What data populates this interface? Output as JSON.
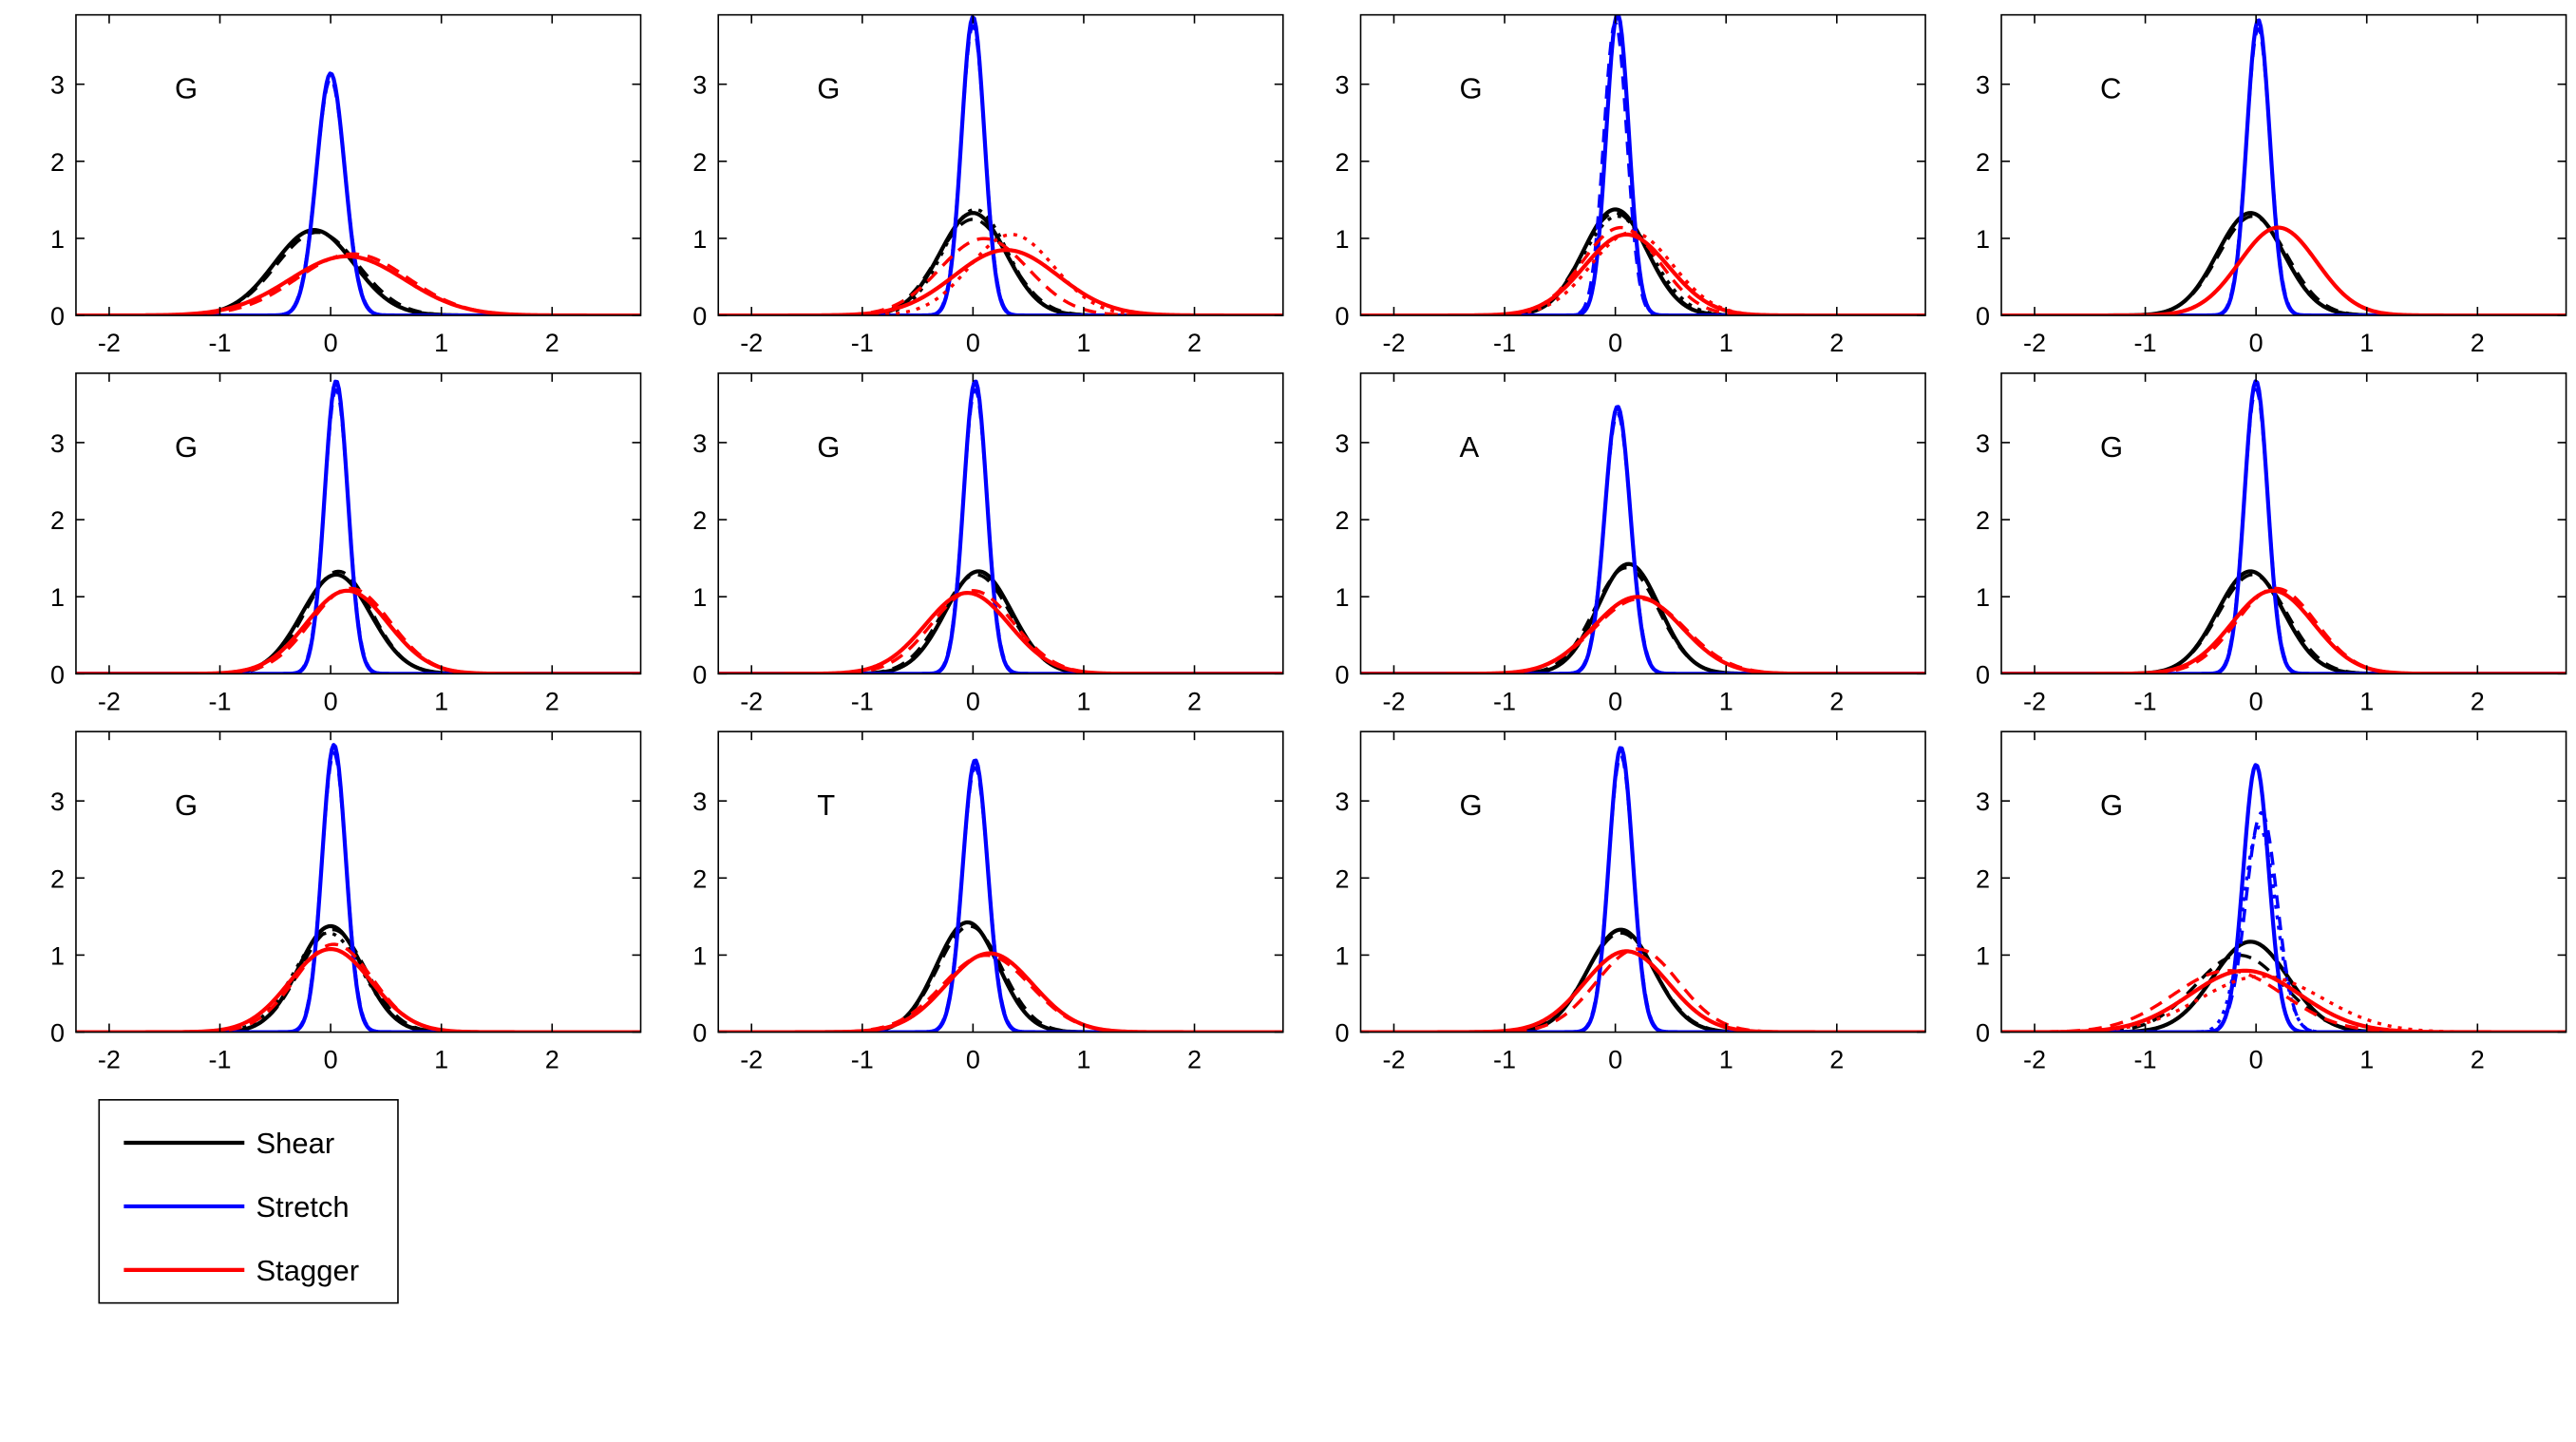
{
  "figure": {
    "legend_entries": [
      {
        "name": "Shear",
        "color": "#000000"
      },
      {
        "name": "Stretch",
        "color": "#0000ff"
      },
      {
        "name": "Stagger",
        "color": "#ff0000"
      }
    ],
    "colors": {
      "shear": "#000000",
      "stretch": "#0000ff",
      "stagger": "#ff0000",
      "axes": "#000000",
      "background": "#ffffff"
    }
  },
  "chart_data": [
    {
      "type": "line",
      "annotation": "G",
      "xlim": [
        -2.3,
        2.8
      ],
      "ylim": [
        0,
        3.9
      ],
      "xticks": [
        -2,
        -1,
        0,
        1,
        2
      ],
      "yticks": [
        0,
        1,
        2,
        3
      ],
      "grid": false,
      "series": [
        {
          "name": "Shear",
          "curves": [
            {
              "mean": -0.15,
              "sd": 0.36
            },
            {
              "mean": -0.12,
              "sd": 0.37
            }
          ]
        },
        {
          "name": "Stretch",
          "curves": [
            {
              "mean": 0.0,
              "sd": 0.127
            },
            {
              "mean": 0.0,
              "sd": 0.13
            }
          ]
        },
        {
          "name": "Stagger",
          "curves": [
            {
              "mean": 0.15,
              "sd": 0.52
            },
            {
              "mean": 0.2,
              "sd": 0.5
            }
          ]
        }
      ]
    },
    {
      "type": "line",
      "annotation": "G",
      "xlim": [
        -2.3,
        2.8
      ],
      "ylim": [
        0,
        3.9
      ],
      "xticks": [
        -2,
        -1,
        0,
        1,
        2
      ],
      "yticks": [
        0,
        1,
        2,
        3
      ],
      "grid": false,
      "series": [
        {
          "name": "Shear",
          "curves": [
            {
              "mean": 0.0,
              "sd": 0.3
            },
            {
              "mean": 0.0,
              "sd": 0.32
            },
            {
              "mean": 0.02,
              "sd": 0.29
            }
          ]
        },
        {
          "name": "Stretch",
          "curves": [
            {
              "mean": 0.0,
              "sd": 0.103
            },
            {
              "mean": 0.0,
              "sd": 0.106
            }
          ]
        },
        {
          "name": "Stagger",
          "curves": [
            {
              "mean": 0.3,
              "sd": 0.47
            },
            {
              "mean": 0.1,
              "sd": 0.4
            },
            {
              "mean": 0.35,
              "sd": 0.38
            }
          ]
        }
      ]
    },
    {
      "type": "line",
      "annotation": "G",
      "xlim": [
        -2.3,
        2.8
      ],
      "ylim": [
        0,
        3.9
      ],
      "xticks": [
        -2,
        -1,
        0,
        1,
        2
      ],
      "yticks": [
        0,
        1,
        2,
        3
      ],
      "grid": false,
      "series": [
        {
          "name": "Shear",
          "curves": [
            {
              "mean": 0.0,
              "sd": 0.29
            },
            {
              "mean": 0.0,
              "sd": 0.3
            },
            {
              "mean": 0.02,
              "sd": 0.31
            }
          ]
        },
        {
          "name": "Stretch",
          "curves": [
            {
              "mean": 0.02,
              "sd": 0.102
            },
            {
              "mean": 0.0,
              "sd": 0.105
            }
          ]
        },
        {
          "name": "Stagger",
          "curves": [
            {
              "mean": 0.1,
              "sd": 0.38
            },
            {
              "mean": 0.05,
              "sd": 0.35
            },
            {
              "mean": 0.15,
              "sd": 0.37
            }
          ]
        }
      ]
    },
    {
      "type": "line",
      "annotation": "C",
      "xlim": [
        -2.3,
        2.8
      ],
      "ylim": [
        0,
        3.9
      ],
      "xticks": [
        -2,
        -1,
        0,
        1,
        2
      ],
      "yticks": [
        0,
        1,
        2,
        3
      ],
      "grid": false,
      "series": [
        {
          "name": "Shear",
          "curves": [
            {
              "mean": -0.05,
              "sd": 0.3
            },
            {
              "mean": -0.03,
              "sd": 0.31
            }
          ]
        },
        {
          "name": "Stretch",
          "curves": [
            {
              "mean": 0.02,
              "sd": 0.104
            },
            {
              "mean": 0.02,
              "sd": 0.107
            }
          ]
        },
        {
          "name": "Stagger",
          "curves": [
            {
              "mean": 0.2,
              "sd": 0.35
            }
          ]
        }
      ]
    },
    {
      "type": "line",
      "annotation": "G",
      "xlim": [
        -2.3,
        2.8
      ],
      "ylim": [
        0,
        3.9
      ],
      "xticks": [
        -2,
        -1,
        0,
        1,
        2
      ],
      "yticks": [
        0,
        1,
        2,
        3
      ],
      "grid": false,
      "series": [
        {
          "name": "Shear",
          "curves": [
            {
              "mean": 0.05,
              "sd": 0.31
            },
            {
              "mean": 0.07,
              "sd": 0.3
            }
          ]
        },
        {
          "name": "Stretch",
          "curves": [
            {
              "mean": 0.05,
              "sd": 0.105
            },
            {
              "mean": 0.05,
              "sd": 0.108
            }
          ]
        },
        {
          "name": "Stagger",
          "curves": [
            {
              "mean": 0.15,
              "sd": 0.37
            },
            {
              "mean": 0.18,
              "sd": 0.36
            }
          ]
        }
      ]
    },
    {
      "type": "line",
      "annotation": "G",
      "xlim": [
        -2.3,
        2.8
      ],
      "ylim": [
        0,
        3.9
      ],
      "xticks": [
        -2,
        -1,
        0,
        1,
        2
      ],
      "yticks": [
        0,
        1,
        2,
        3
      ],
      "grid": false,
      "series": [
        {
          "name": "Shear",
          "curves": [
            {
              "mean": 0.05,
              "sd": 0.3
            },
            {
              "mean": 0.03,
              "sd": 0.31
            }
          ]
        },
        {
          "name": "Stretch",
          "curves": [
            {
              "mean": 0.02,
              "sd": 0.105
            },
            {
              "mean": 0.02,
              "sd": 0.108
            }
          ]
        },
        {
          "name": "Stagger",
          "curves": [
            {
              "mean": -0.05,
              "sd": 0.38
            },
            {
              "mean": 0.0,
              "sd": 0.37
            }
          ]
        }
      ]
    },
    {
      "type": "line",
      "annotation": "A",
      "xlim": [
        -2.3,
        2.8
      ],
      "ylim": [
        0,
        3.9
      ],
      "xticks": [
        -2,
        -1,
        0,
        1,
        2
      ],
      "yticks": [
        0,
        1,
        2,
        3
      ],
      "grid": false,
      "series": [
        {
          "name": "Shear",
          "curves": [
            {
              "mean": 0.12,
              "sd": 0.28
            },
            {
              "mean": 0.1,
              "sd": 0.29
            }
          ]
        },
        {
          "name": "Stretch",
          "curves": [
            {
              "mean": 0.02,
              "sd": 0.115
            },
            {
              "mean": 0.02,
              "sd": 0.118
            }
          ]
        },
        {
          "name": "Stagger",
          "curves": [
            {
              "mean": 0.2,
              "sd": 0.4
            },
            {
              "mean": 0.22,
              "sd": 0.41
            }
          ]
        }
      ]
    },
    {
      "type": "line",
      "annotation": "G",
      "xlim": [
        -2.3,
        2.8
      ],
      "ylim": [
        0,
        3.9
      ],
      "xticks": [
        -2,
        -1,
        0,
        1,
        2
      ],
      "yticks": [
        0,
        1,
        2,
        3
      ],
      "grid": false,
      "series": [
        {
          "name": "Shear",
          "curves": [
            {
              "mean": -0.05,
              "sd": 0.3
            },
            {
              "mean": -0.03,
              "sd": 0.31
            }
          ]
        },
        {
          "name": "Stretch",
          "curves": [
            {
              "mean": 0.0,
              "sd": 0.105
            },
            {
              "mean": 0.0,
              "sd": 0.108
            }
          ]
        },
        {
          "name": "Stagger",
          "curves": [
            {
              "mean": 0.15,
              "sd": 0.37
            },
            {
              "mean": 0.18,
              "sd": 0.36
            }
          ]
        }
      ]
    },
    {
      "type": "line",
      "annotation": "G",
      "xlim": [
        -2.3,
        2.8
      ],
      "ylim": [
        0,
        3.9
      ],
      "xticks": [
        -2,
        -1,
        0,
        1,
        2
      ],
      "yticks": [
        0,
        1,
        2,
        3
      ],
      "grid": false,
      "series": [
        {
          "name": "Shear",
          "curves": [
            {
              "mean": 0.0,
              "sd": 0.29
            },
            {
              "mean": 0.02,
              "sd": 0.3
            },
            {
              "mean": -0.02,
              "sd": 0.31
            }
          ]
        },
        {
          "name": "Stretch",
          "curves": [
            {
              "mean": 0.03,
              "sd": 0.107
            },
            {
              "mean": 0.03,
              "sd": 0.11
            }
          ]
        },
        {
          "name": "Stagger",
          "curves": [
            {
              "mean": 0.0,
              "sd": 0.37
            },
            {
              "mean": 0.03,
              "sd": 0.35
            }
          ]
        }
      ]
    },
    {
      "type": "line",
      "annotation": "T",
      "xlim": [
        -2.3,
        2.8
      ],
      "ylim": [
        0,
        3.9
      ],
      "xticks": [
        -2,
        -1,
        0,
        1,
        2
      ],
      "yticks": [
        0,
        1,
        2,
        3
      ],
      "grid": false,
      "series": [
        {
          "name": "Shear",
          "curves": [
            {
              "mean": -0.05,
              "sd": 0.28
            },
            {
              "mean": -0.03,
              "sd": 0.29
            }
          ]
        },
        {
          "name": "Stretch",
          "curves": [
            {
              "mean": 0.02,
              "sd": 0.113
            },
            {
              "mean": 0.02,
              "sd": 0.116
            }
          ]
        },
        {
          "name": "Stagger",
          "curves": [
            {
              "mean": 0.15,
              "sd": 0.39
            },
            {
              "mean": 0.12,
              "sd": 0.4
            }
          ]
        }
      ]
    },
    {
      "type": "line",
      "annotation": "G",
      "xlim": [
        -2.3,
        2.8
      ],
      "ylim": [
        0,
        3.9
      ],
      "xticks": [
        -2,
        -1,
        0,
        1,
        2
      ],
      "yticks": [
        0,
        1,
        2,
        3
      ],
      "grid": false,
      "series": [
        {
          "name": "Shear",
          "curves": [
            {
              "mean": 0.05,
              "sd": 0.3
            },
            {
              "mean": 0.05,
              "sd": 0.31
            }
          ]
        },
        {
          "name": "Stretch",
          "curves": [
            {
              "mean": 0.05,
              "sd": 0.108
            },
            {
              "mean": 0.05,
              "sd": 0.111
            }
          ]
        },
        {
          "name": "Stagger",
          "curves": [
            {
              "mean": 0.1,
              "sd": 0.38
            },
            {
              "mean": 0.2,
              "sd": 0.37
            }
          ]
        }
      ]
    },
    {
      "type": "line",
      "annotation": "G",
      "xlim": [
        -2.3,
        2.8
      ],
      "ylim": [
        0,
        3.9
      ],
      "xticks": [
        -2,
        -1,
        0,
        1,
        2
      ],
      "yticks": [
        0,
        1,
        2,
        3
      ],
      "grid": false,
      "series": [
        {
          "name": "Shear",
          "curves": [
            {
              "mean": -0.05,
              "sd": 0.34
            },
            {
              "mean": -0.15,
              "sd": 0.4
            }
          ]
        },
        {
          "name": "Stretch",
          "curves": [
            {
              "mean": 0.0,
              "sd": 0.115
            },
            {
              "mean": 0.05,
              "sd": 0.14
            },
            {
              "mean": 0.03,
              "sd": 0.15
            }
          ]
        },
        {
          "name": "Stagger",
          "curves": [
            {
              "mean": -0.1,
              "sd": 0.5
            },
            {
              "mean": -0.25,
              "sd": 0.5
            },
            {
              "mean": 0.05,
              "sd": 0.55
            }
          ]
        }
      ]
    }
  ]
}
